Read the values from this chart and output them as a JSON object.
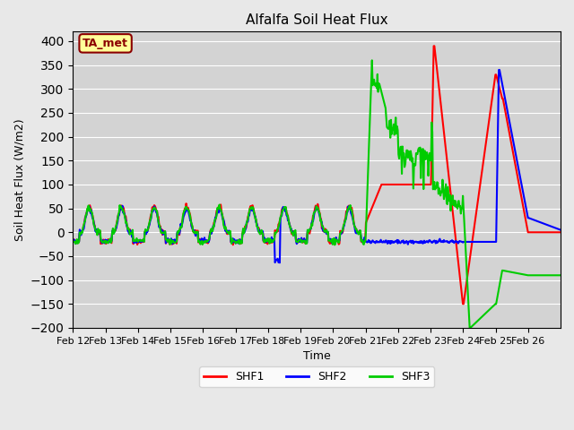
{
  "title": "Alfalfa Soil Heat Flux",
  "ylabel": "Soil Heat Flux (W/m2)",
  "xlabel": "Time",
  "ylim": [
    -200,
    420
  ],
  "yticks": [
    -200,
    -150,
    -100,
    -50,
    0,
    50,
    100,
    150,
    200,
    250,
    300,
    350,
    400
  ],
  "annotation": "TA_met",
  "annotation_color": "#8B0000",
  "annotation_bg": "#FFFF99",
  "bg_color": "#E8E8E8",
  "plot_bg": "#D8D8D8",
  "line_colors": {
    "SHF1": "#FF0000",
    "SHF2": "#0000FF",
    "SHF3": "#00CC00"
  },
  "line_width": 1.5,
  "num_days": 15,
  "x_labels": [
    "Feb 12",
    "Feb 13",
    "Feb 14",
    "Feb 15",
    "Feb 16",
    "Feb 17",
    "Feb 18",
    "Feb 19",
    "Feb 20",
    "Feb 21",
    "Feb 22",
    "Feb 23",
    "Feb 24",
    "Feb 25",
    "Feb 26"
  ]
}
